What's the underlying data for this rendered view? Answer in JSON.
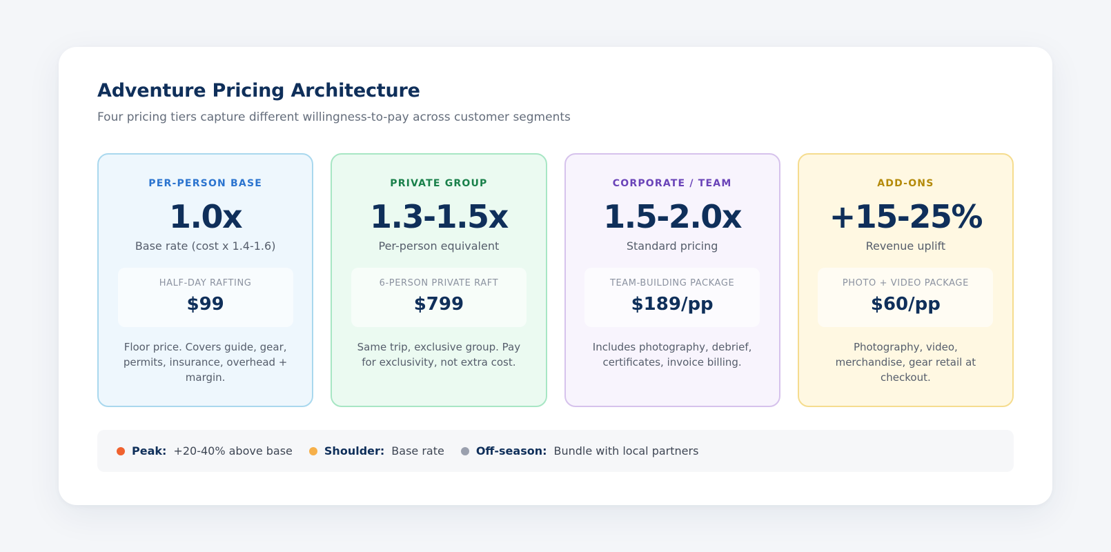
{
  "header": {
    "title": "Adventure Pricing Architecture",
    "subtitle": "Four pricing tiers capture different willingness-to-pay across customer segments"
  },
  "tiers": [
    {
      "label": "PER-PERSON BASE",
      "multiplier": "1.0x",
      "note": "Base rate (cost x 1.4-1.6)",
      "example_label": "HALF-DAY RAFTING",
      "example_price": "$99",
      "description": "Floor price. Covers guide, gear, permits, insurance, overhead + margin.",
      "accent": "#2b74cf",
      "border": "#a9d8ee",
      "bg": "#eef7fd"
    },
    {
      "label": "PRIVATE GROUP",
      "multiplier": "1.3-1.5x",
      "note": "Per-person equivalent",
      "example_label": "6-PERSON PRIVATE RAFT",
      "example_price": "$799",
      "description": "Same trip, exclusive group. Pay for exclusivity, not extra cost.",
      "accent": "#19804a",
      "border": "#a7e6c4",
      "bg": "#ebfaf1"
    },
    {
      "label": "CORPORATE / TEAM",
      "multiplier": "1.5-2.0x",
      "note": "Standard pricing",
      "example_label": "TEAM-BUILDING PACKAGE",
      "example_price": "$189/pp",
      "description": "Includes photography, debrief, certificates, invoice billing.",
      "accent": "#6a43b8",
      "border": "#d6c2ec",
      "bg": "#f8f4fd"
    },
    {
      "label": "ADD-ONS",
      "multiplier": "+15-25%",
      "note": "Revenue uplift",
      "example_label": "PHOTO + VIDEO PACKAGE",
      "example_price": "$60/pp",
      "description": "Photography, video, merchandise, gear retail at checkout.",
      "accent": "#b48a0a",
      "border": "#f5dc8e",
      "bg": "#fff8e2"
    }
  ],
  "seasons": [
    {
      "name": "Peak:",
      "value": "+20-40% above base",
      "color": "#f0622f"
    },
    {
      "name": "Shoulder:",
      "value": "Base rate",
      "color": "#f6b04a"
    },
    {
      "name": "Off-season:",
      "value": "Bundle with local partners",
      "color": "#9aa0ae"
    }
  ]
}
